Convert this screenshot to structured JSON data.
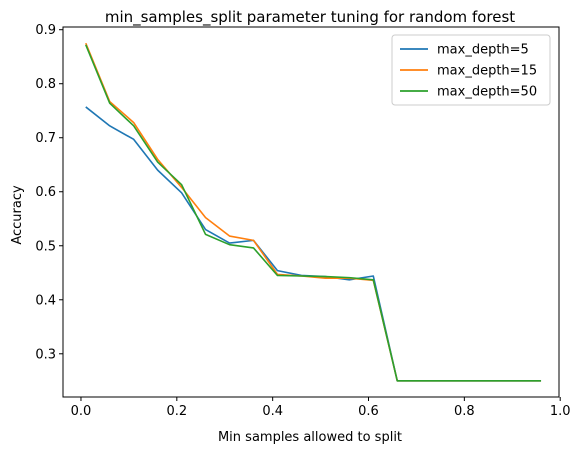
{
  "chart_data": {
    "type": "line",
    "title": "min_samples_split parameter tuning for random forest",
    "xlabel": "Min samples allowed to split",
    "ylabel": "Accuracy",
    "xlim": [
      -0.0375,
      0.9975
    ],
    "ylim": [
      0.22,
      0.905
    ],
    "xticks": [
      0.0,
      0.2,
      0.4,
      0.6,
      0.8,
      1.0
    ],
    "xtick_labels": [
      "0.0",
      "0.2",
      "0.4",
      "0.6",
      "0.8",
      "1.0"
    ],
    "yticks": [
      0.3,
      0.4,
      0.5,
      0.6,
      0.7,
      0.8,
      0.9
    ],
    "ytick_labels": [
      "0.3",
      "0.4",
      "0.5",
      "0.6",
      "0.7",
      "0.8",
      "0.9"
    ],
    "grid": false,
    "legend_position": "top-right",
    "x": [
      0.01,
      0.06,
      0.11,
      0.16,
      0.21,
      0.26,
      0.31,
      0.36,
      0.41,
      0.46,
      0.51,
      0.56,
      0.61,
      0.66,
      0.71,
      0.76,
      0.81,
      0.86,
      0.91,
      0.96
    ],
    "series": [
      {
        "name": "max_depth=5",
        "color": "#1f77b4",
        "values": [
          0.757,
          0.722,
          0.697,
          0.64,
          0.598,
          0.53,
          0.505,
          0.51,
          0.454,
          0.445,
          0.443,
          0.437,
          0.444,
          0.25,
          0.25,
          0.25,
          0.25,
          0.25,
          0.25,
          0.25
        ]
      },
      {
        "name": "max_depth=15",
        "color": "#ff7f0e",
        "values": [
          0.875,
          0.767,
          0.728,
          0.66,
          0.608,
          0.552,
          0.518,
          0.51,
          0.447,
          0.444,
          0.44,
          0.44,
          0.436,
          0.25,
          0.25,
          0.25,
          0.25,
          0.25,
          0.25,
          0.25
        ]
      },
      {
        "name": "max_depth=50",
        "color": "#2ca02c",
        "values": [
          0.872,
          0.764,
          0.722,
          0.655,
          0.613,
          0.521,
          0.502,
          0.496,
          0.445,
          0.444,
          0.443,
          0.441,
          0.437,
          0.25,
          0.25,
          0.25,
          0.25,
          0.25,
          0.25,
          0.25
        ]
      }
    ]
  }
}
